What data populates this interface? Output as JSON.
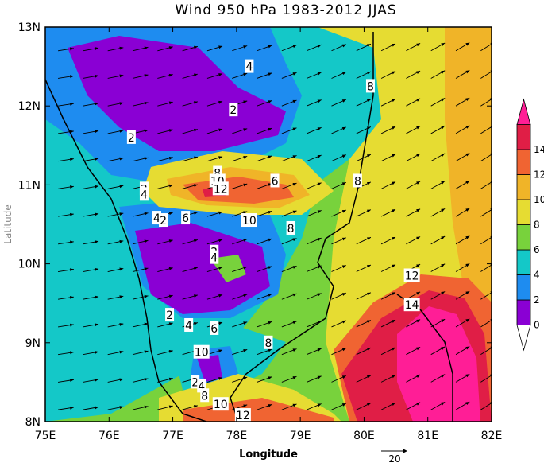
{
  "title": "Wind 950 hPa 1983-2012 JJAS",
  "xlabel": "Longitude",
  "ylabel": "Latitude",
  "x_ticks": [
    "75E",
    "76E",
    "77E",
    "78E",
    "79E",
    "80E",
    "81E",
    "82E"
  ],
  "y_ticks": [
    "8N",
    "9N",
    "10N",
    "11N",
    "12N",
    "13N"
  ],
  "colorbar": {
    "ticks": [
      "0",
      "2",
      "4",
      "6",
      "8",
      "10",
      "12",
      "14"
    ],
    "colors": [
      "#ffffff",
      "#8a00d4",
      "#1e8cf0",
      "#14c8c8",
      "#78d23c",
      "#e6dc32",
      "#f0b428",
      "#f06432",
      "#e01e46",
      "#ff1e96"
    ]
  },
  "reference_vector": {
    "label": "20",
    "magnitude": 20
  },
  "contour_labels": [
    "2",
    "4",
    "6",
    "8",
    "10",
    "12",
    "14"
  ],
  "chart_data": {
    "type": "heatmap",
    "title": "Wind 950 hPa 1983-2012 JJAS",
    "xlabel": "Longitude",
    "ylabel": "Latitude",
    "xlim": [
      75,
      82
    ],
    "ylim": [
      8,
      13
    ],
    "levels": [
      0,
      2,
      4,
      6,
      8,
      10,
      12,
      14
    ],
    "units_reference_vector": 20,
    "features": [
      {
        "label": "2",
        "value": 2,
        "lon": 76.9,
        "lat": 12.3
      },
      {
        "label": "2",
        "value": 2,
        "lon": 77.3,
        "lat": 10.1
      },
      {
        "label": "12",
        "value": 12,
        "lon": 77.9,
        "lat": 10.9
      },
      {
        "label": "14",
        "value": 14,
        "lon": 80.9,
        "lat": 9.3
      },
      {
        "label": "12",
        "value": 12,
        "lon": 80.8,
        "lat": 9.8
      },
      {
        "label": "2",
        "value": 2,
        "lon": 77.5,
        "lat": 8.6
      }
    ]
  }
}
